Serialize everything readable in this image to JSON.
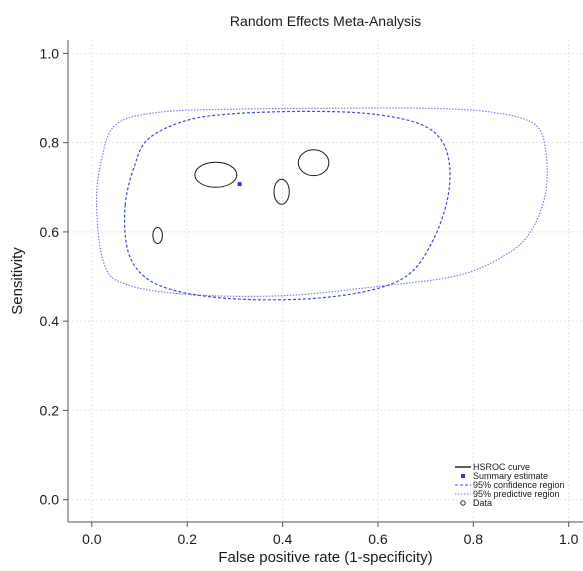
{
  "chart_data": {
    "type": "scatter",
    "title": "Random Effects Meta-Analysis",
    "xlabel": "False positive rate (1-specificity)",
    "ylabel": "Sensitivity",
    "xlim": [
      -0.05,
      1.03
    ],
    "ylim": [
      -0.05,
      1.03
    ],
    "xticks": [
      0.0,
      0.2,
      0.4,
      0.6,
      0.8,
      1.0
    ],
    "yticks": [
      0.0,
      0.2,
      0.4,
      0.6,
      0.8,
      1.0
    ],
    "xtick_labels": [
      "0.0",
      "0.2",
      "0.4",
      "0.6",
      "0.8",
      "1.0"
    ],
    "ytick_labels": [
      "0.0",
      "0.2",
      "0.4",
      "0.6",
      "0.8",
      "1.0"
    ],
    "grid": true,
    "legend_position": "bottom-right",
    "legend": [
      {
        "key": "hsroc",
        "label": "HSROC curve"
      },
      {
        "key": "summary",
        "label": "Summary estimate"
      },
      {
        "key": "confidence",
        "label": "95% confidence region"
      },
      {
        "key": "predictive",
        "label": "95% predictive region"
      },
      {
        "key": "data",
        "label": "Data"
      }
    ],
    "summary_estimate": {
      "x": 0.31,
      "y": 0.707
    },
    "confidence_region": [
      [
        0.07,
        0.66
      ],
      [
        0.09,
        0.75
      ],
      [
        0.12,
        0.81
      ],
      [
        0.2,
        0.85
      ],
      [
        0.3,
        0.865
      ],
      [
        0.45,
        0.87
      ],
      [
        0.58,
        0.865
      ],
      [
        0.68,
        0.845
      ],
      [
        0.73,
        0.81
      ],
      [
        0.75,
        0.75
      ],
      [
        0.745,
        0.67
      ],
      [
        0.715,
        0.58
      ],
      [
        0.665,
        0.505
      ],
      [
        0.58,
        0.468
      ],
      [
        0.45,
        0.45
      ],
      [
        0.3,
        0.45
      ],
      [
        0.18,
        0.467
      ],
      [
        0.11,
        0.5
      ],
      [
        0.075,
        0.56
      ],
      [
        0.07,
        0.66
      ]
    ],
    "predictive_region": [
      [
        0.01,
        0.66
      ],
      [
        0.02,
        0.76
      ],
      [
        0.05,
        0.84
      ],
      [
        0.14,
        0.868
      ],
      [
        0.3,
        0.875
      ],
      [
        0.5,
        0.877
      ],
      [
        0.7,
        0.877
      ],
      [
        0.84,
        0.868
      ],
      [
        0.93,
        0.84
      ],
      [
        0.953,
        0.77
      ],
      [
        0.95,
        0.68
      ],
      [
        0.92,
        0.6
      ],
      [
        0.87,
        0.55
      ],
      [
        0.77,
        0.503
      ],
      [
        0.6,
        0.478
      ],
      [
        0.4,
        0.457
      ],
      [
        0.2,
        0.46
      ],
      [
        0.07,
        0.483
      ],
      [
        0.025,
        0.53
      ],
      [
        0.01,
        0.66
      ]
    ],
    "data_points": [
      {
        "x": 0.26,
        "y": 0.728,
        "rx": 0.044,
        "ry": 0.028
      },
      {
        "x": 0.465,
        "y": 0.755,
        "rx": 0.032,
        "ry": 0.029
      },
      {
        "x": 0.398,
        "y": 0.69,
        "rx": 0.016,
        "ry": 0.028
      },
      {
        "x": 0.138,
        "y": 0.592,
        "rx": 0.01,
        "ry": 0.018
      }
    ],
    "colors": {
      "hsroc": "#1a1a1a",
      "summary": "#1f3fd1",
      "confidence": "#3a4fd0",
      "predictive": "#7b7bf0",
      "data": "#1a1a1a",
      "grid": "#e4e4e4",
      "axis": "#555555"
    }
  }
}
